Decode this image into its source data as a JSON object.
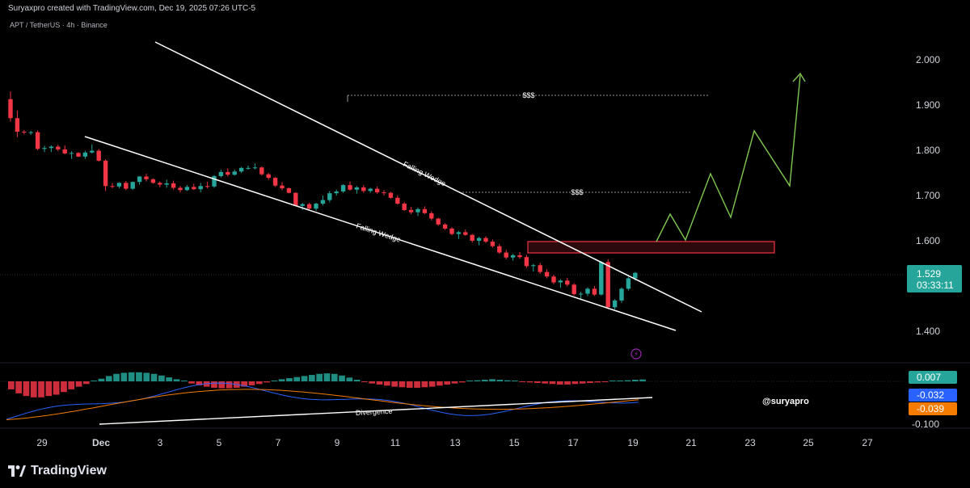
{
  "header": {
    "credit": "Suryaxpro created with TradingView.com, Dec 19, 2025 07:26 UTC-5",
    "symbol": "APT / TetherUS · 4h · Binance"
  },
  "footer": {
    "brand": "TradingView"
  },
  "watermark": "@suryapro",
  "chart_data": {
    "type": "candlestick",
    "colors": {
      "up": "#26a69a",
      "down": "#f23645",
      "projection": "#7ec850",
      "zone": "#f23645",
      "signal": "#f57c00",
      "macd": "#2962ff"
    },
    "x_axis_labels": [
      "29",
      "Dec",
      "3",
      "5",
      "7",
      "9",
      "11",
      "13",
      "15",
      "17",
      "19",
      "21",
      "23",
      "25",
      "27"
    ],
    "price_axis": {
      "ticks": [
        "2.000",
        "1.900",
        "1.800",
        "1.700",
        "1.600",
        "1.400"
      ],
      "ylim": [
        1.4,
        2.0
      ]
    },
    "last_price": {
      "value": "1.529",
      "countdown": "03:33:11"
    },
    "indicator_axis": {
      "ticks": [
        "-0.100"
      ],
      "histogram_value": "0.007",
      "macd_value": "-0.032",
      "signal_value": "-0.039"
    },
    "annotations": [
      {
        "text": "Falling Wedge"
      },
      {
        "text": "Falling Wedge"
      },
      {
        "text": "$$$"
      },
      {
        "text": "$$$"
      },
      {
        "text": "Divergence"
      }
    ],
    "candles": [
      [
        1.913,
        1.93,
        1.863,
        1.871
      ],
      [
        1.871,
        1.888,
        1.829,
        1.841
      ],
      [
        1.841,
        1.845,
        1.835,
        1.84
      ],
      [
        1.84,
        1.843,
        1.834,
        1.84
      ],
      [
        1.84,
        1.844,
        1.8,
        1.803
      ],
      [
        1.803,
        1.81,
        1.796,
        1.805
      ],
      [
        1.805,
        1.811,
        1.796,
        1.808
      ],
      [
        1.808,
        1.812,
        1.798,
        1.802
      ],
      [
        1.802,
        1.811,
        1.791,
        1.793
      ],
      [
        1.793,
        1.798,
        1.781,
        1.794
      ],
      [
        1.794,
        1.796,
        1.785,
        1.786
      ],
      [
        1.786,
        1.799,
        1.781,
        1.795
      ],
      [
        1.795,
        1.813,
        1.793,
        1.799
      ],
      [
        1.799,
        1.803,
        1.775,
        1.777
      ],
      [
        1.777,
        1.78,
        1.71,
        1.721
      ],
      [
        1.721,
        1.728,
        1.716,
        1.72
      ],
      [
        1.72,
        1.729,
        1.716,
        1.728
      ],
      [
        1.728,
        1.732,
        1.712,
        1.715
      ],
      [
        1.715,
        1.731,
        1.713,
        1.73
      ],
      [
        1.73,
        1.743,
        1.724,
        1.742
      ],
      [
        1.742,
        1.748,
        1.731,
        1.736
      ],
      [
        1.736,
        1.738,
        1.726,
        1.728
      ],
      [
        1.728,
        1.731,
        1.718,
        1.724
      ],
      [
        1.724,
        1.735,
        1.717,
        1.727
      ],
      [
        1.727,
        1.733,
        1.713,
        1.717
      ],
      [
        1.717,
        1.721,
        1.707,
        1.712
      ],
      [
        1.712,
        1.723,
        1.71,
        1.719
      ],
      [
        1.719,
        1.726,
        1.712,
        1.714
      ],
      [
        1.714,
        1.728,
        1.707,
        1.721
      ],
      [
        1.721,
        1.73,
        1.716,
        1.72
      ],
      [
        1.72,
        1.745,
        1.717,
        1.743
      ],
      [
        1.743,
        1.757,
        1.74,
        1.752
      ],
      [
        1.752,
        1.76,
        1.742,
        1.746
      ],
      [
        1.746,
        1.757,
        1.744,
        1.753
      ],
      [
        1.753,
        1.763,
        1.75,
        1.761
      ],
      [
        1.761,
        1.766,
        1.757,
        1.761
      ],
      [
        1.761,
        1.771,
        1.758,
        1.762
      ],
      [
        1.762,
        1.764,
        1.744,
        1.747
      ],
      [
        1.747,
        1.75,
        1.735,
        1.739
      ],
      [
        1.739,
        1.741,
        1.719,
        1.722
      ],
      [
        1.722,
        1.73,
        1.712,
        1.716
      ],
      [
        1.716,
        1.718,
        1.705,
        1.706
      ],
      [
        1.706,
        1.707,
        1.676,
        1.677
      ],
      [
        1.677,
        1.684,
        1.668,
        1.681
      ],
      [
        1.681,
        1.684,
        1.669,
        1.671
      ],
      [
        1.671,
        1.684,
        1.666,
        1.682
      ],
      [
        1.682,
        1.7,
        1.678,
        1.69
      ],
      [
        1.69,
        1.71,
        1.685,
        1.705
      ],
      [
        1.705,
        1.713,
        1.7,
        1.709
      ],
      [
        1.709,
        1.725,
        1.706,
        1.723
      ],
      [
        1.723,
        1.731,
        1.711,
        1.713
      ],
      [
        1.713,
        1.721,
        1.704,
        1.718
      ],
      [
        1.718,
        1.723,
        1.706,
        1.71
      ],
      [
        1.71,
        1.717,
        1.706,
        1.715
      ],
      [
        1.715,
        1.72,
        1.704,
        1.707
      ],
      [
        1.707,
        1.712,
        1.7,
        1.706
      ],
      [
        1.706,
        1.708,
        1.693,
        1.695
      ],
      [
        1.695,
        1.7,
        1.68,
        1.682
      ],
      [
        1.682,
        1.686,
        1.666,
        1.668
      ],
      [
        1.668,
        1.675,
        1.659,
        1.663
      ],
      [
        1.663,
        1.673,
        1.655,
        1.67
      ],
      [
        1.67,
        1.676,
        1.659,
        1.661
      ],
      [
        1.661,
        1.665,
        1.645,
        1.649
      ],
      [
        1.649,
        1.651,
        1.633,
        1.636
      ],
      [
        1.636,
        1.639,
        1.624,
        1.627
      ],
      [
        1.627,
        1.63,
        1.612,
        1.615
      ],
      [
        1.615,
        1.622,
        1.604,
        1.619
      ],
      [
        1.619,
        1.625,
        1.611,
        1.613
      ],
      [
        1.613,
        1.615,
        1.596,
        1.6
      ],
      [
        1.6,
        1.609,
        1.59,
        1.606
      ],
      [
        1.606,
        1.61,
        1.595,
        1.598
      ],
      [
        1.598,
        1.603,
        1.585,
        1.588
      ],
      [
        1.588,
        1.593,
        1.571,
        1.574
      ],
      [
        1.574,
        1.58,
        1.559,
        1.563
      ],
      [
        1.563,
        1.571,
        1.556,
        1.568
      ],
      [
        1.568,
        1.575,
        1.56,
        1.564
      ],
      [
        1.564,
        1.569,
        1.54,
        1.544
      ],
      [
        1.544,
        1.549,
        1.532,
        1.546
      ],
      [
        1.546,
        1.551,
        1.527,
        1.531
      ],
      [
        1.531,
        1.537,
        1.517,
        1.521
      ],
      [
        1.521,
        1.525,
        1.504,
        1.508
      ],
      [
        1.508,
        1.515,
        1.496,
        1.512
      ],
      [
        1.512,
        1.518,
        1.499,
        1.503
      ],
      [
        1.503,
        1.506,
        1.479,
        1.482
      ],
      [
        1.482,
        1.487,
        1.47,
        1.483
      ],
      [
        1.483,
        1.497,
        1.478,
        1.494
      ],
      [
        1.494,
        1.5,
        1.478,
        1.481
      ],
      [
        1.481,
        1.555,
        1.479,
        1.553
      ],
      [
        1.553,
        1.559,
        1.449,
        1.453
      ],
      [
        1.453,
        1.471,
        1.448,
        1.468
      ],
      [
        1.468,
        1.497,
        1.463,
        1.494
      ],
      [
        1.494,
        1.52,
        1.49,
        1.517
      ],
      [
        1.517,
        1.531,
        1.512,
        1.529
      ]
    ],
    "histogram": [
      -0.03,
      -0.045,
      -0.055,
      -0.06,
      -0.06,
      -0.055,
      -0.05,
      -0.04,
      -0.03,
      -0.02,
      -0.01,
      0.0,
      0.01,
      0.02,
      0.028,
      0.032,
      0.034,
      0.034,
      0.032,
      0.028,
      0.022,
      0.015,
      0.008,
      0.0,
      -0.008,
      -0.015,
      -0.02,
      -0.024,
      -0.026,
      -0.026,
      -0.024,
      -0.02,
      -0.015,
      -0.01,
      -0.004,
      0.002,
      0.008,
      0.012,
      0.016,
      0.02,
      0.024,
      0.028,
      0.03,
      0.028,
      0.022,
      0.014,
      0.006,
      -0.002,
      -0.008,
      -0.012,
      -0.016,
      -0.02,
      -0.022,
      -0.024,
      -0.024,
      -0.022,
      -0.02,
      -0.016,
      -0.012,
      -0.008,
      -0.004,
      0.0,
      0.004,
      0.006,
      0.008,
      0.006,
      0.004,
      0.001,
      -0.002,
      -0.004,
      -0.006,
      -0.008,
      -0.01,
      -0.012,
      -0.012,
      -0.01,
      -0.008,
      -0.006,
      -0.004,
      -0.002,
      0.0,
      0.002,
      0.004,
      0.006,
      0.007
    ]
  }
}
